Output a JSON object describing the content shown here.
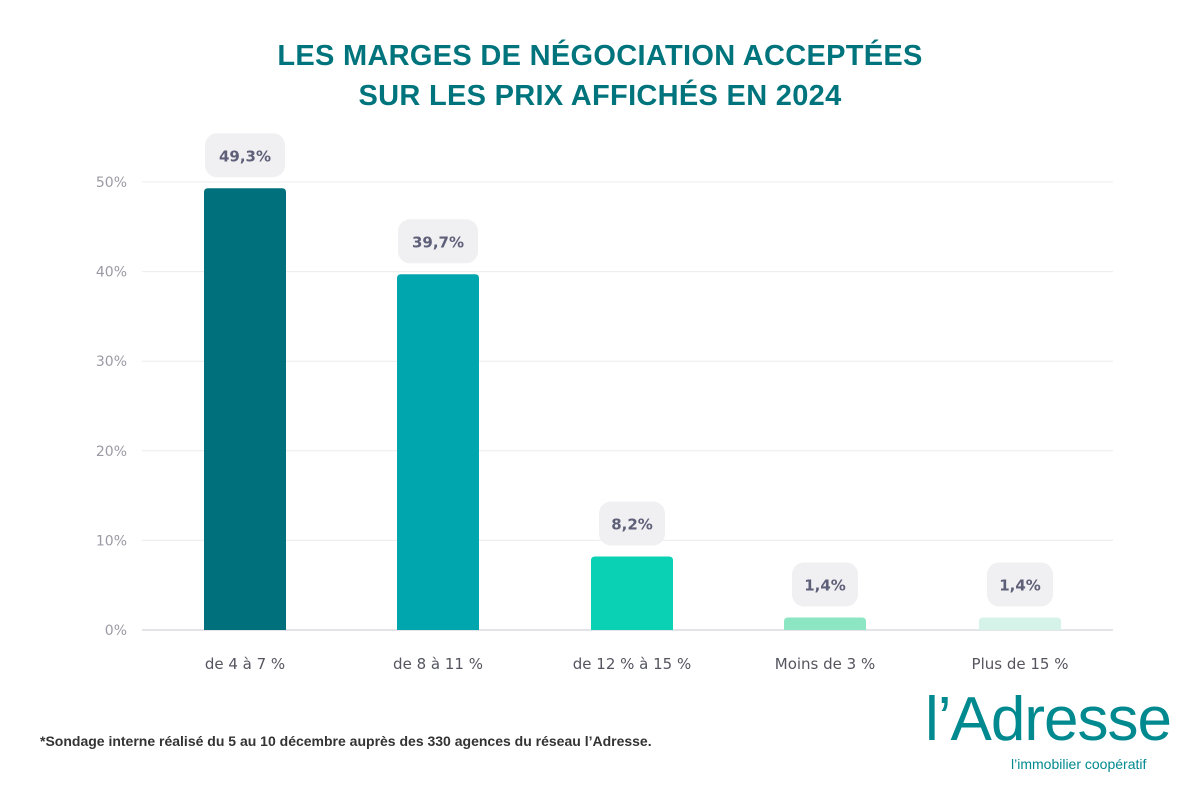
{
  "title_lines": [
    "LES MARGES DE NÉGOCIATION ACCEPTÉES",
    "SUR LES PRIX AFFICHÉS EN 2024"
  ],
  "footnote": "*Sondage interne réalisé du 5 au 10 décembre auprès des 330 agences du réseau l’Adresse.",
  "logo": {
    "name": "l’Adresse",
    "tagline": "l’immobilier coopératif",
    "color": "#00898f"
  },
  "chart_data": {
    "type": "bar",
    "title": "LES MARGES DE NÉGOCIATION ACCEPTÉES SUR LES PRIX AFFICHÉS EN 2024",
    "categories": [
      "de 4 à 7 %",
      "de 8 à 11 %",
      "de 12 % à 15 %",
      "Moins de 3 %",
      "Plus de 15 %"
    ],
    "values": [
      49.3,
      39.7,
      8.2,
      1.4,
      1.4
    ],
    "data_labels": [
      "49,3%",
      "39,7%",
      "8,2%",
      "1,4%",
      "1,4%"
    ],
    "colors": [
      "#00707c",
      "#00a6ae",
      "#0ad1b4",
      "#8de6c3",
      "#d5f3e8"
    ],
    "ylim": [
      0,
      50
    ],
    "yticks": [
      0,
      10,
      20,
      30,
      40,
      50
    ],
    "ytick_labels": [
      "0%",
      "10%",
      "20%",
      "30%",
      "40%",
      "50%"
    ],
    "grid": true,
    "xlabel": "",
    "ylabel": ""
  }
}
